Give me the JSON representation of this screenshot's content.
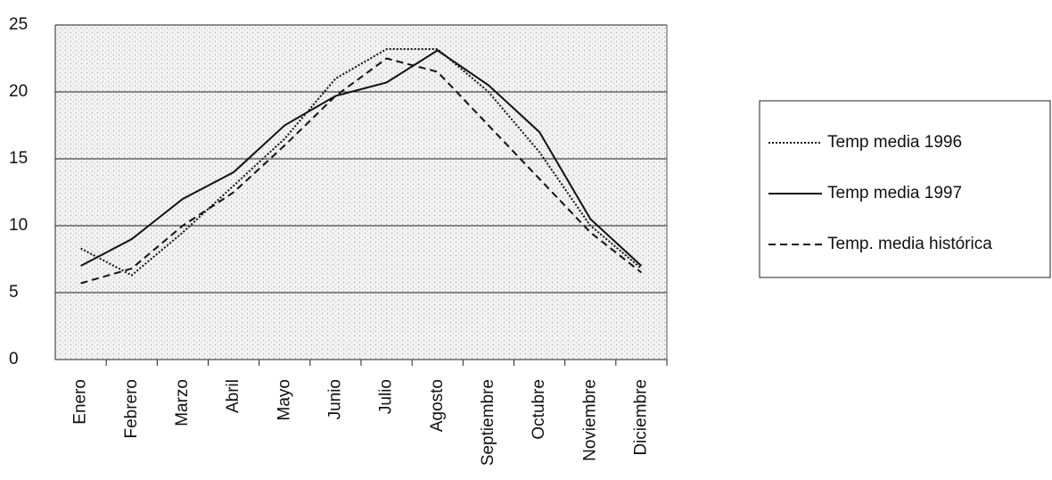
{
  "chart_data": {
    "type": "line",
    "categories": [
      "Enero",
      "Febrero",
      "Marzo",
      "Abril",
      "Mayo",
      "Junio",
      "Julio",
      "Agosto",
      "Septiembre",
      "Octubre",
      "Noviembre",
      "Diciembre"
    ],
    "series": [
      {
        "name": "Temp media 1996",
        "color": "#111111",
        "style": "dotted",
        "values": [
          8.3,
          6.3,
          9.5,
          13,
          16.5,
          21,
          23.2,
          23.2,
          20,
          15.5,
          10,
          6.8
        ]
      },
      {
        "name": "Temp media 1997",
        "color": "#111111",
        "style": "solid",
        "values": [
          7,
          9,
          12,
          14,
          17.5,
          19.7,
          20.7,
          23.1,
          20.5,
          17,
          10.5,
          7
        ]
      },
      {
        "name": "Temp. media histórica",
        "color": "#111111",
        "style": "dashed",
        "values": [
          5.7,
          6.8,
          10,
          12.5,
          16,
          19.7,
          22.5,
          21.5,
          17.5,
          13.5,
          9.5,
          6.5
        ]
      }
    ],
    "ylim": [
      0,
      25
    ],
    "yticks": [
      0,
      5,
      10,
      15,
      20,
      25
    ],
    "grid": true,
    "legend": "right"
  }
}
